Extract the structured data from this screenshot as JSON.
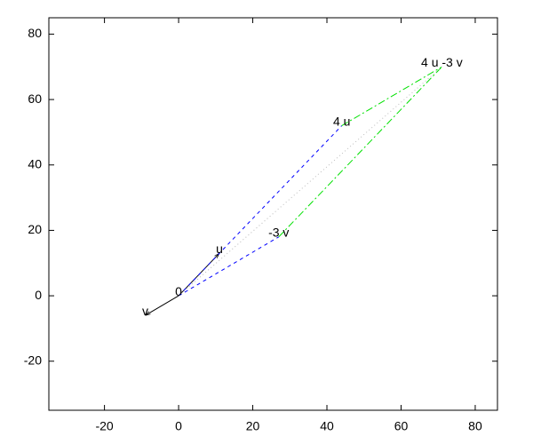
{
  "chart_data": {
    "type": "vector",
    "xlim": [
      -35,
      86
    ],
    "ylim": [
      -35,
      85
    ],
    "xticks": [
      -20,
      0,
      20,
      40,
      60,
      80
    ],
    "yticks": [
      -20,
      0,
      20,
      40,
      60,
      80
    ],
    "points": [
      {
        "label": "0",
        "x": 0,
        "y": 0
      },
      {
        "label": "u",
        "x": 11,
        "y": 13
      },
      {
        "label": "v",
        "x": -9,
        "y": -6
      },
      {
        "label": "4 u",
        "x": 44,
        "y": 52
      },
      {
        "label": "-3 v",
        "x": 27,
        "y": 18
      },
      {
        "label": "4 u -3 v",
        "x": 71,
        "y": 70
      }
    ],
    "segments": [
      {
        "from": 0,
        "to": 1,
        "color": "#000000",
        "dash": "solid"
      },
      {
        "from": 0,
        "to": 2,
        "color": "#000000",
        "dash": "solid"
      },
      {
        "from": 0,
        "to": 3,
        "color": "#0000ff",
        "dash": "dashed"
      },
      {
        "from": 0,
        "to": 4,
        "color": "#0000ff",
        "dash": "dashed"
      },
      {
        "from": 3,
        "to": 5,
        "color": "#00e000",
        "dash": "dashdot"
      },
      {
        "from": 4,
        "to": 5,
        "color": "#00e000",
        "dash": "dashdot"
      },
      {
        "from": 0,
        "to": 5,
        "color": "#bbbbbb",
        "dash": "dotted"
      }
    ]
  }
}
